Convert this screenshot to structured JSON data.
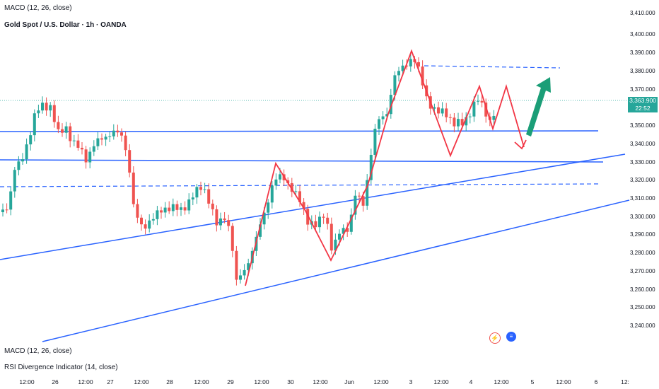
{
  "top_indicator_label": "MACD (12, 26, close)",
  "symbol_title": "Gold Spot / U.S. Dollar · 1h · OANDA",
  "macd_pane_label": "MACD (12, 26, close)",
  "rsi_pane_label": "RSI Divergence Indicator (14, close)",
  "price_ticks": [
    "3,410.000",
    "3,400.000",
    "3,390.000",
    "3,380.000",
    "3,370.000",
    "3,350.000",
    "3,340.000",
    "3,330.000",
    "3,320.000",
    "3,310.000",
    "3,300.000",
    "3,290.000",
    "3,280.000",
    "3,270.000",
    "3,260.000",
    "3,250.000",
    "3,240.000"
  ],
  "last_price": "3,363.900",
  "countdown": "22:52",
  "time_ticks": [
    "12:00",
    "26",
    "12:00",
    "27",
    "12:00",
    "28",
    "12:00",
    "29",
    "12:00",
    "30",
    "12:00",
    "Jun",
    "12:00",
    "3",
    "12:00",
    "4",
    "12:00",
    "5",
    "12:00",
    "6",
    "12:"
  ],
  "colors": {
    "up": "#26a69a",
    "down": "#ef5350",
    "line": "#2962ff",
    "pattern": "#f23645",
    "arrow": "#1b9e77"
  },
  "icons": [
    "lightning-event-icon",
    "us-flag-event-icon"
  ]
}
